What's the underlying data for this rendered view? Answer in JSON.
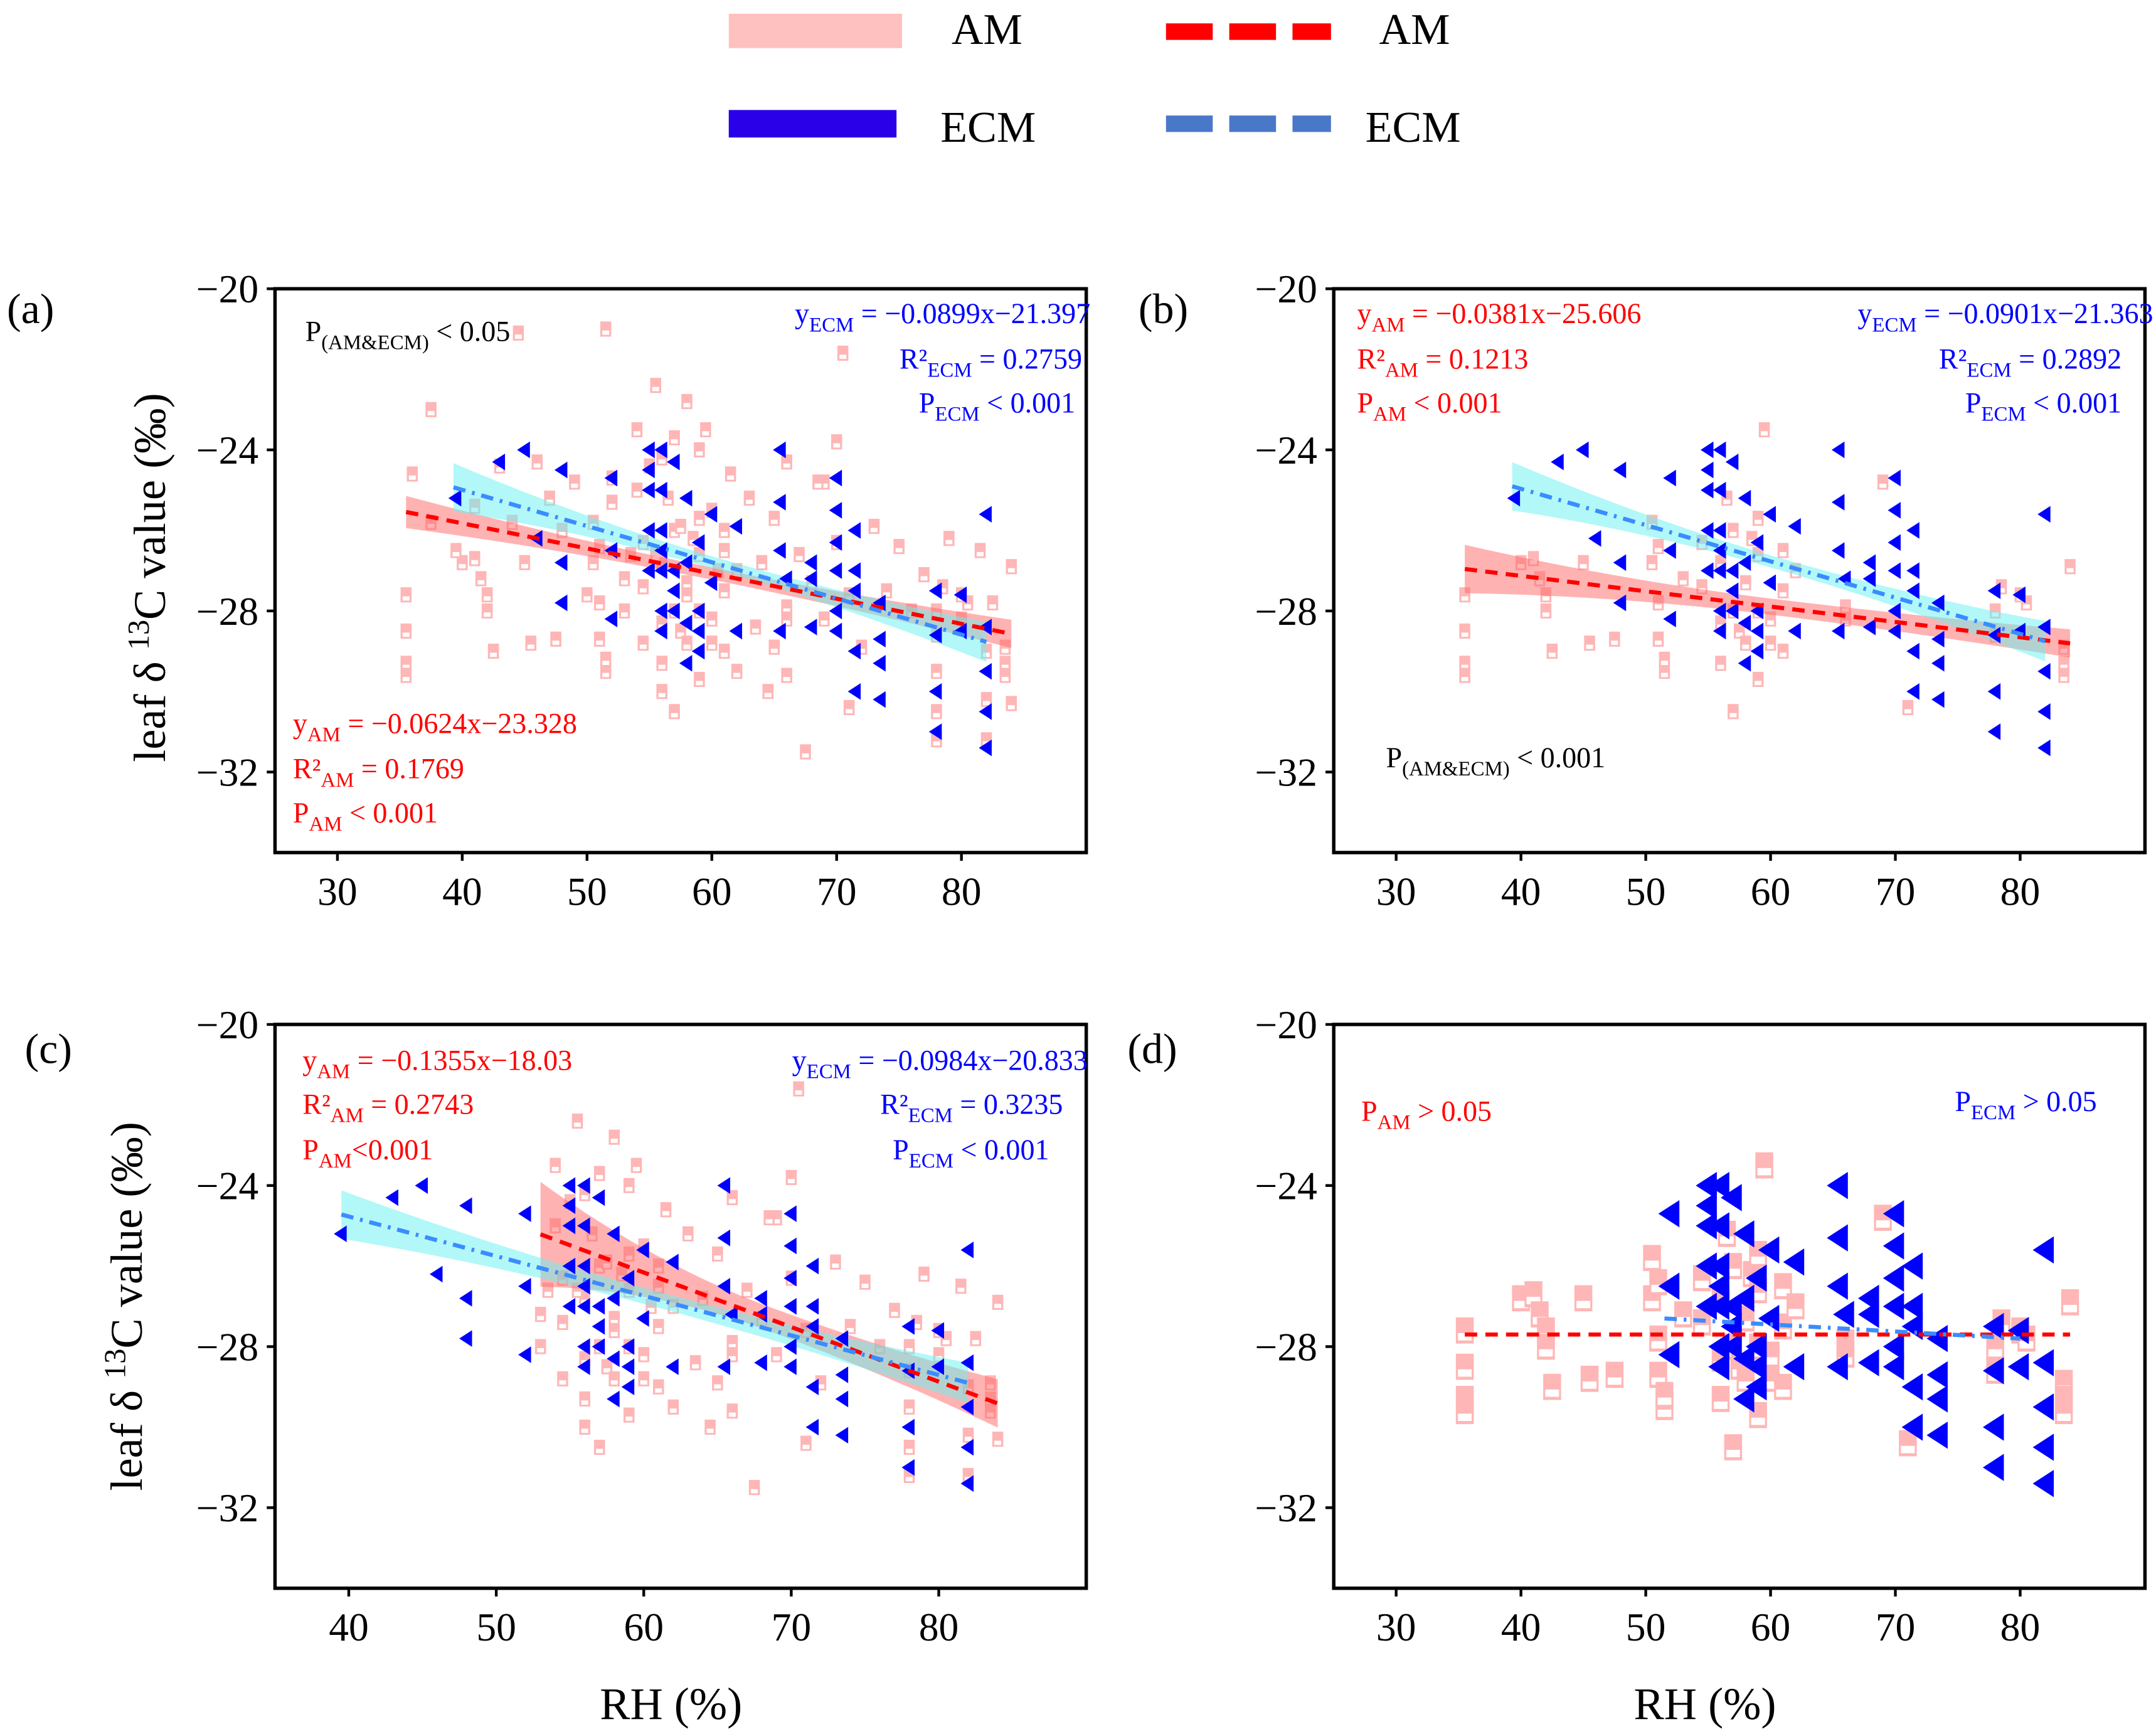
{
  "legend": {
    "items": [
      {
        "label": "AM",
        "kind": "band",
        "color": "#ffc0c0"
      },
      {
        "label": "ECM",
        "kind": "band",
        "color": "#2a00e8"
      },
      {
        "label": "AM",
        "kind": "dashed",
        "color": "#ff0000"
      },
      {
        "label": "ECM",
        "kind": "dashed",
        "color": "#4a78c8"
      }
    ]
  },
  "colors": {
    "am_marker": "#ffb6b6",
    "ecm_marker": "#0000ff",
    "am_band": "#ff6666",
    "ecm_band": "#66f2f2",
    "am_line": "#ff0000",
    "ecm_line": "#3a8cff"
  },
  "ylabel": {
    "pre": "leaf δ ",
    "sup": "13",
    "post": "C value (‰)"
  },
  "xlabel": "RH (%)",
  "chart_data": {
    "type": "scatter",
    "datasets": {
      "am_subset": [
        [
          35.5,
          -27.6
        ],
        [
          35.5,
          -28.5
        ],
        [
          35.5,
          -29.3
        ],
        [
          35.5,
          -29.6
        ],
        [
          40,
          -26.8
        ],
        [
          41,
          -26.7
        ],
        [
          41.5,
          -27.2
        ],
        [
          42,
          -27.6
        ],
        [
          42,
          -28
        ],
        [
          42.5,
          -29
        ],
        [
          45,
          -26.8
        ],
        [
          45.5,
          -28.8
        ],
        [
          47.5,
          -28.7
        ],
        [
          50.5,
          -25.8
        ],
        [
          50.5,
          -26.8
        ],
        [
          51,
          -26.4
        ],
        [
          51,
          -27.8
        ],
        [
          51,
          -28.7
        ],
        [
          51.5,
          -29.5
        ],
        [
          51.5,
          -29.2
        ],
        [
          53,
          -27.2
        ],
        [
          54.5,
          -26.3
        ],
        [
          54.5,
          -27.4
        ],
        [
          56,
          -26.8
        ],
        [
          56,
          -28.3
        ],
        [
          56,
          -29.3
        ],
        [
          56.5,
          -25.2
        ],
        [
          57,
          -26
        ],
        [
          57,
          -28
        ],
        [
          57,
          -30.5
        ],
        [
          57.5,
          -28.5
        ],
        [
          58,
          -27.3
        ],
        [
          58,
          -28.8
        ],
        [
          58.5,
          -26.2
        ],
        [
          59,
          -25.7
        ],
        [
          59,
          -26.6
        ],
        [
          59,
          -28
        ],
        [
          59,
          -29.7
        ],
        [
          59.5,
          -23.5
        ],
        [
          60,
          -28.2
        ],
        [
          60,
          -28.8
        ],
        [
          61,
          -26.5
        ],
        [
          61,
          -27.5
        ],
        [
          61,
          -29
        ],
        [
          62,
          -27
        ],
        [
          66,
          -27.9
        ],
        [
          66,
          -28.2
        ],
        [
          69,
          -24.8
        ],
        [
          71,
          -30.4
        ],
        [
          78,
          -28
        ],
        [
          78,
          -28.6
        ],
        [
          78.5,
          -27.4
        ],
        [
          80,
          -27.6
        ],
        [
          80.5,
          -27.8
        ],
        [
          84,
          -26.9
        ],
        [
          83.5,
          -28.9
        ],
        [
          83.5,
          -29.3
        ],
        [
          83.5,
          -29.6
        ]
      ],
      "am_extra": [
        [
          36,
          -24.6
        ],
        [
          37.5,
          -23
        ],
        [
          37.5,
          -25.8
        ],
        [
          39.5,
          -26.5
        ],
        [
          41,
          -25.4
        ],
        [
          43,
          -24.4
        ],
        [
          44,
          -25.8
        ],
        [
          44.5,
          -21.1
        ],
        [
          46,
          -24.3
        ],
        [
          47,
          -25.2
        ],
        [
          48,
          -26
        ],
        [
          49,
          -24.8
        ],
        [
          50,
          -27.6
        ],
        [
          51.5,
          -21
        ],
        [
          52,
          -25.3
        ],
        [
          52,
          -24.7
        ],
        [
          53,
          -28
        ],
        [
          53.5,
          -26.6
        ],
        [
          54,
          -23.5
        ],
        [
          54,
          -25
        ],
        [
          54.5,
          -28.8
        ],
        [
          55,
          -24.4
        ],
        [
          55.5,
          -22.4
        ],
        [
          55.5,
          -26.6
        ],
        [
          56,
          -24.2
        ],
        [
          56,
          -30
        ],
        [
          57,
          -23.7
        ],
        [
          57.5,
          -25.9
        ],
        [
          58,
          -22.8
        ],
        [
          58,
          -27.6
        ],
        [
          59,
          -24
        ],
        [
          60,
          -25.5
        ],
        [
          60.5,
          -27
        ],
        [
          61,
          -26
        ],
        [
          61.5,
          -24.6
        ],
        [
          62,
          -29.5
        ],
        [
          63,
          -25.2
        ],
        [
          63.5,
          -28.4
        ],
        [
          64,
          -26.8
        ],
        [
          64.5,
          -30
        ],
        [
          65,
          -25.7
        ],
        [
          65,
          -28.9
        ],
        [
          66,
          -24.3
        ],
        [
          66,
          -29.6
        ],
        [
          67,
          -26.6
        ],
        [
          67.5,
          -31.5
        ],
        [
          68,
          -27.3
        ],
        [
          68.5,
          -24.8
        ],
        [
          69,
          -28.2
        ],
        [
          70,
          -23.8
        ],
        [
          70,
          -26.3
        ],
        [
          70.5,
          -21.6
        ],
        [
          71,
          -27.6
        ],
        [
          72,
          -28.9
        ],
        [
          73,
          -25.9
        ],
        [
          74,
          -27.5
        ],
        [
          75,
          -26.4
        ],
        [
          76,
          -28
        ],
        [
          77,
          -27.1
        ],
        [
          78,
          -29.5
        ],
        [
          78,
          -30.5
        ],
        [
          78,
          -31.2
        ],
        [
          79,
          -26.2
        ],
        [
          80,
          -28.2
        ],
        [
          81.5,
          -26.5
        ],
        [
          82,
          -29
        ],
        [
          82,
          -30.2
        ],
        [
          82,
          -31.2
        ],
        [
          82.5,
          -27.8
        ],
        [
          84,
          -30.3
        ]
      ],
      "ecm": [
        [
          39.5,
          -25.2
        ],
        [
          43,
          -24.3
        ],
        [
          45,
          -24
        ],
        [
          46,
          -26.2
        ],
        [
          48,
          -24.5
        ],
        [
          48,
          -26.8
        ],
        [
          48,
          -27.8
        ],
        [
          52,
          -24.7
        ],
        [
          52,
          -26.5
        ],
        [
          52,
          -28.2
        ],
        [
          55,
          -24
        ],
        [
          55,
          -24.5
        ],
        [
          55,
          -25
        ],
        [
          55,
          -26
        ],
        [
          55,
          -27
        ],
        [
          56,
          -24
        ],
        [
          56,
          -25
        ],
        [
          56,
          -26
        ],
        [
          56,
          -26.5
        ],
        [
          56,
          -27
        ],
        [
          56,
          -28
        ],
        [
          56,
          -28.5
        ],
        [
          57,
          -24.3
        ],
        [
          57,
          -27
        ],
        [
          57,
          -27.5
        ],
        [
          57,
          -28
        ],
        [
          58,
          -25.2
        ],
        [
          58,
          -26.8
        ],
        [
          58,
          -28.3
        ],
        [
          58,
          -29.3
        ],
        [
          59,
          -26.3
        ],
        [
          59,
          -28
        ],
        [
          59,
          -28.5
        ],
        [
          59,
          -29
        ],
        [
          60,
          -25.6
        ],
        [
          60,
          -27.3
        ],
        [
          62,
          -25.9
        ],
        [
          62,
          -28.5
        ],
        [
          65.5,
          -24
        ],
        [
          65.5,
          -25.3
        ],
        [
          65.5,
          -26.5
        ],
        [
          65.5,
          -28.5
        ],
        [
          66,
          -27.2
        ],
        [
          68,
          -26.8
        ],
        [
          68,
          -27.2
        ],
        [
          68,
          -28.4
        ],
        [
          70,
          -24.7
        ],
        [
          70,
          -25.5
        ],
        [
          70,
          -26.3
        ],
        [
          70,
          -27
        ],
        [
          70,
          -28
        ],
        [
          70,
          -28.5
        ],
        [
          71.5,
          -26
        ],
        [
          71.5,
          -27
        ],
        [
          71.5,
          -27.5
        ],
        [
          71.5,
          -29
        ],
        [
          71.5,
          -30
        ],
        [
          73.5,
          -27.8
        ],
        [
          73.5,
          -28.7
        ],
        [
          73.5,
          -29.3
        ],
        [
          73.5,
          -30.2
        ],
        [
          78,
          -27.5
        ],
        [
          78,
          -28.6
        ],
        [
          78,
          -30
        ],
        [
          78,
          -31
        ],
        [
          80,
          -27.6
        ],
        [
          80,
          -28.5
        ],
        [
          82,
          -25.6
        ],
        [
          82,
          -28.4
        ],
        [
          82,
          -29.5
        ],
        [
          82,
          -30.5
        ],
        [
          82,
          -31.4
        ]
      ]
    },
    "panels": [
      {
        "id": "a",
        "label": "(a)",
        "xlim": [
          25,
          90
        ],
        "ylim": [
          -34,
          -20
        ],
        "x_ticks": [
          30,
          40,
          50,
          60,
          70,
          80
        ],
        "y_ticks": [
          -20,
          -24,
          -28,
          -32
        ],
        "am_points": [
          "am_subset",
          "am_extra"
        ],
        "am_xmin": 0,
        "ecm_points": [
          "ecm"
        ],
        "am_fit": {
          "slope": -0.0624,
          "intercept": -23.328,
          "x_range": [
            35.5,
            84
          ],
          "ci": [
            0.4,
            0.15,
            0.35
          ]
        },
        "ecm_fit": {
          "slope": -0.0899,
          "intercept": -21.397,
          "x_range": [
            39.3,
            82
          ],
          "ci": [
            0.6,
            0.15,
            0.5
          ]
        },
        "annotations": {
          "p_both": {
            "main": "P",
            "sub": "(AM&ECM)",
            "rest": " < 0.05"
          },
          "ecm_eq": {
            "main": "y",
            "sub": "ECM",
            "rest": " = −0.0899x−21.397"
          },
          "ecm_r2": {
            "main": "R²",
            "sub": "ECM",
            "rest": " = 0.2759"
          },
          "ecm_p": {
            "main": "P",
            "sub": "ECM",
            "rest": " < 0.001"
          },
          "am_eq": {
            "main": "y",
            "sub": "AM",
            "rest": " = −0.0624x−23.328"
          },
          "am_r2": {
            "main": "R²",
            "sub": "AM",
            "rest": " = 0.1769"
          },
          "am_p": {
            "main": "P",
            "sub": "AM",
            "rest": " < 0.001"
          }
        }
      },
      {
        "id": "b",
        "label": "(b)",
        "xlim": [
          25,
          90
        ],
        "ylim": [
          -34,
          -20
        ],
        "x_ticks": [
          30,
          40,
          50,
          60,
          70,
          80
        ],
        "y_ticks": [
          -20,
          -24,
          -28,
          -32
        ],
        "am_points": [
          "am_subset"
        ],
        "am_xmin": 0,
        "ecm_points": [
          "ecm"
        ],
        "am_fit": {
          "slope": -0.0381,
          "intercept": -25.606,
          "x_range": [
            35.5,
            84
          ],
          "ci": [
            0.6,
            0.2,
            0.35
          ]
        },
        "ecm_fit": {
          "slope": -0.0901,
          "intercept": -21.363,
          "x_range": [
            39.3,
            82
          ],
          "ci": [
            0.6,
            0.15,
            0.5
          ]
        },
        "annotations": {
          "am_eq": {
            "main": "y",
            "sub": "AM",
            "rest": " = −0.0381x−25.606"
          },
          "am_r2": {
            "main": "R²",
            "sub": "AM",
            "rest": " = 0.1213"
          },
          "am_p": {
            "main": "P",
            "sub": "AM",
            "rest": " < 0.001"
          },
          "ecm_eq": {
            "main": "y",
            "sub": "ECM",
            "rest": " = −0.0901x−21.363"
          },
          "ecm_r2": {
            "main": "R²",
            "sub": "ECM",
            "rest": " = 0.2892"
          },
          "ecm_p": {
            "main": "P",
            "sub": "ECM",
            "rest": " < 0.001"
          },
          "p_both": {
            "main": "P",
            "sub": "(AM&ECM)",
            "rest": " < 0.001"
          }
        }
      },
      {
        "id": "c",
        "label": "(c)",
        "xlim": [
          35,
          90
        ],
        "ylim": [
          -34,
          -20
        ],
        "x_ticks": [
          40,
          50,
          60,
          70,
          80
        ],
        "y_ticks": [
          -20,
          -24,
          -28,
          -32
        ],
        "am_points": [
          "am_subset",
          "am_extra"
        ],
        "am_xmin": 53,
        "ecm_points": [
          "ecm"
        ],
        "am_fit": {
          "slope": -0.1355,
          "intercept": -18.03,
          "x_range": [
            53,
            84
          ],
          "ci": [
            1.3,
            0.3,
            0.6
          ]
        },
        "ecm_fit": {
          "slope": -0.0984,
          "intercept": -20.833,
          "x_range": [
            39.5,
            82
          ],
          "ci": [
            0.6,
            0.2,
            0.5
          ]
        },
        "annotations": {
          "am_eq": {
            "main": "y",
            "sub": "AM",
            "rest": " = −0.1355x−18.03"
          },
          "am_r2": {
            "main": "R²",
            "sub": "AM",
            "rest": " = 0.2743"
          },
          "am_p": {
            "main": "P",
            "sub": "AM",
            "rest": "<0.001"
          },
          "ecm_eq": {
            "main": "y",
            "sub": "ECM",
            "rest": " = −0.0984x−20.833"
          },
          "ecm_r2": {
            "main": "R²",
            "sub": "ECM",
            "rest": " = 0.3235"
          },
          "ecm_p": {
            "main": "P",
            "sub": "ECM",
            "rest": " < 0.001"
          }
        }
      },
      {
        "id": "d",
        "label": "(d)",
        "xlim": [
          25,
          90
        ],
        "ylim": [
          -34,
          -20
        ],
        "x_ticks": [
          30,
          40,
          50,
          60,
          70,
          80
        ],
        "y_ticks": [
          -20,
          -24,
          -28,
          -32
        ],
        "am_points": [
          "am_subset"
        ],
        "am_xmin": 0,
        "ecm_points": [
          "ecm"
        ],
        "ecm_xmin": 51,
        "am_fit": {
          "slope": 0,
          "intercept": -27.7,
          "x_range": [
            35.5,
            84
          ],
          "ci": [
            0,
            0,
            0
          ]
        },
        "ecm_fit": {
          "slope": -0.0175,
          "intercept": -26.4,
          "x_range": [
            51.5,
            80
          ],
          "ci": [
            0,
            0,
            0
          ]
        },
        "big_markers": true,
        "annotations": {
          "am_p": {
            "main": "P",
            "sub": "AM",
            "rest": " > 0.05"
          },
          "ecm_p": {
            "main": "P",
            "sub": "ECM",
            "rest": " > 0.05"
          }
        }
      }
    ]
  }
}
